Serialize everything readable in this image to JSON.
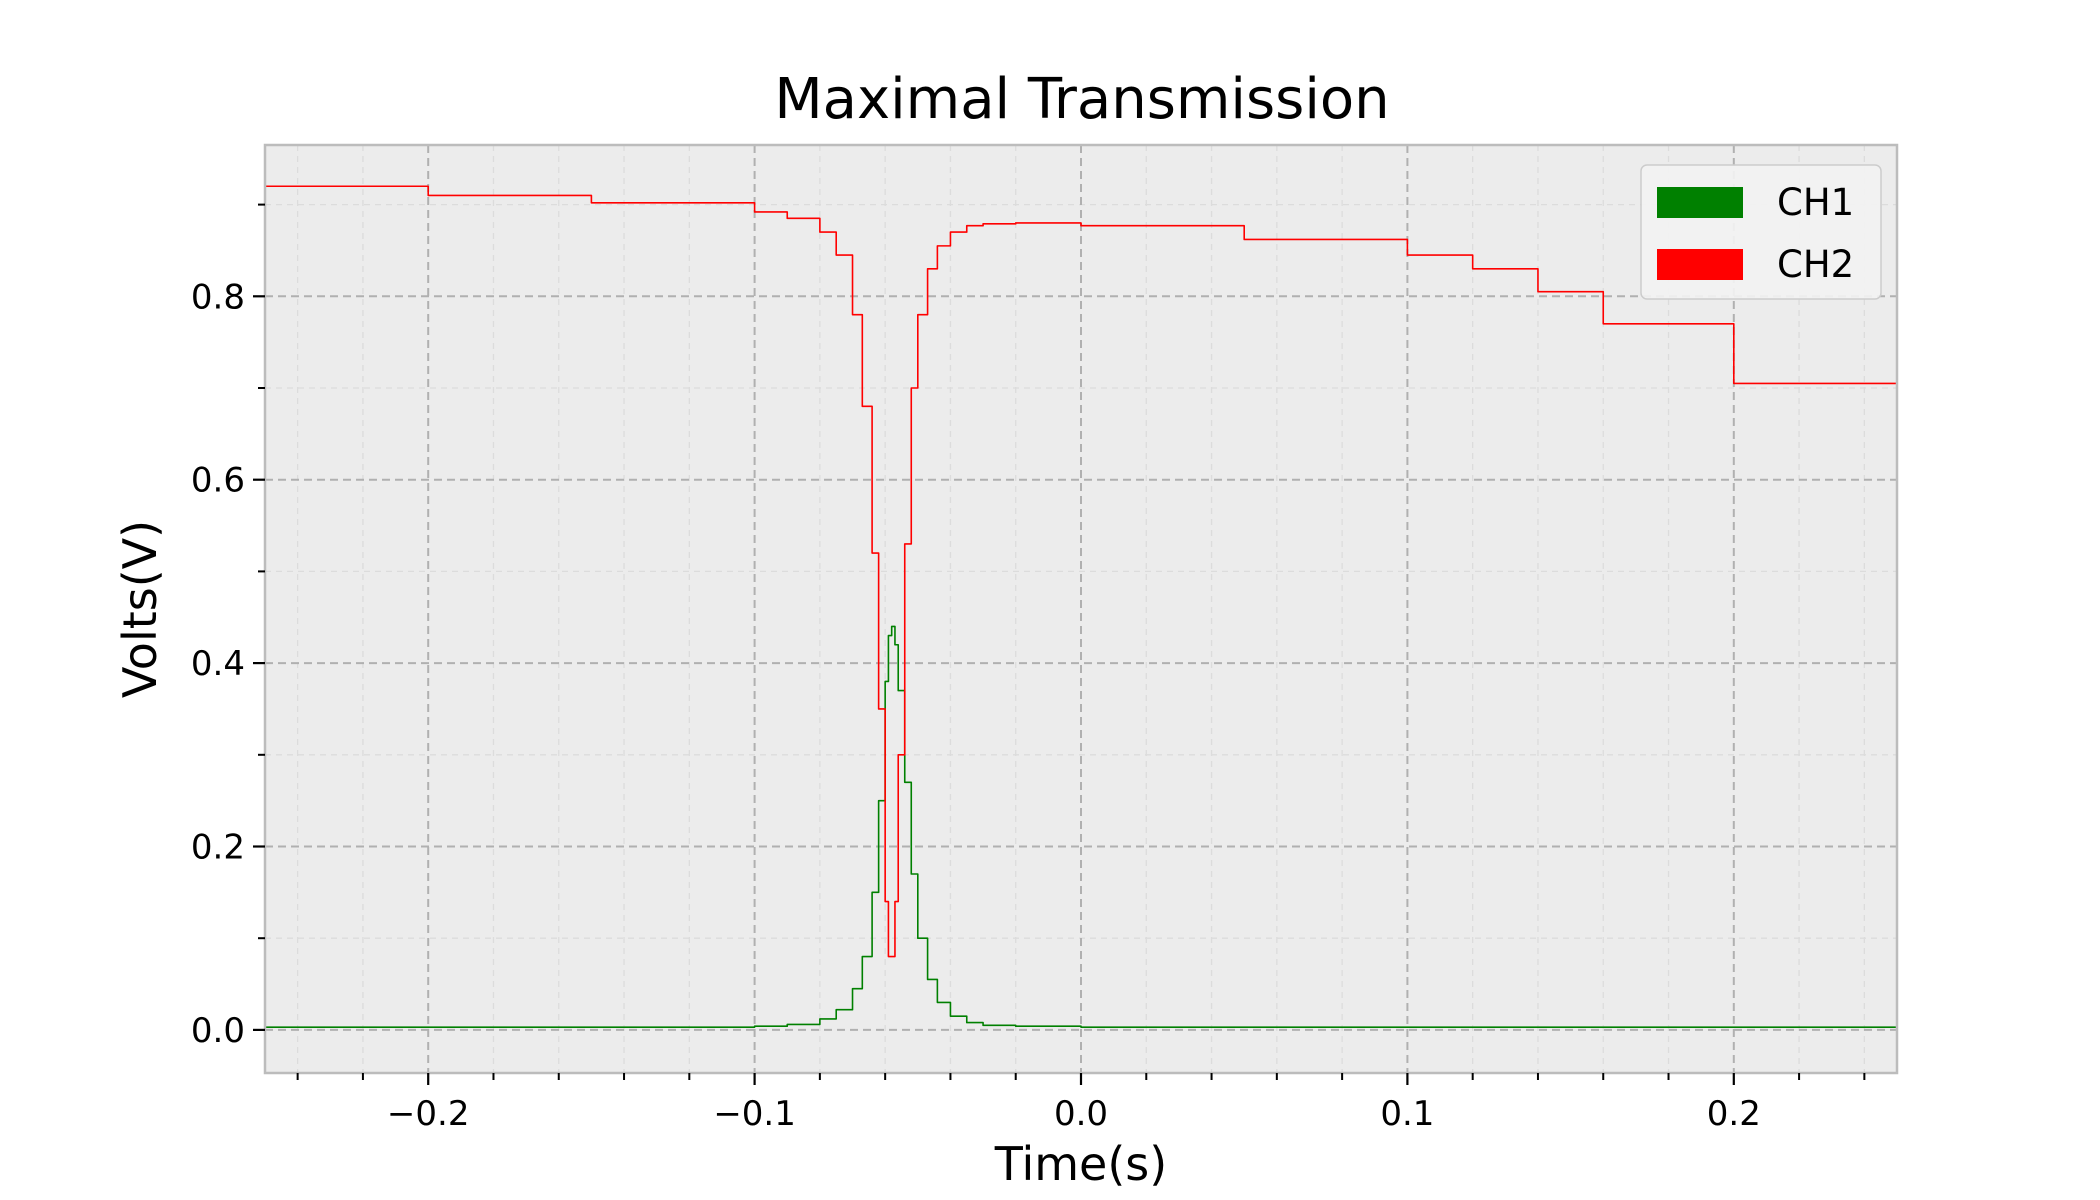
{
  "chart_data": {
    "type": "line",
    "title": "Maximal Transmission",
    "xlabel": "Time(s)",
    "ylabel": "Volts(V)",
    "xlim": [
      -0.25,
      0.25
    ],
    "ylim": [
      -0.047,
      0.965
    ],
    "x_major_ticks": [
      -0.2,
      -0.1,
      0.0,
      0.1,
      0.2
    ],
    "x_tick_labels": [
      "−0.2",
      "−0.1",
      "0.0",
      "0.1",
      "0.2"
    ],
    "x_minor_step": 0.02,
    "y_major_ticks": [
      0.0,
      0.2,
      0.4,
      0.6,
      0.8
    ],
    "y_tick_labels": [
      "0.0",
      "0.2",
      "0.4",
      "0.6",
      "0.8"
    ],
    "y_minor_step": 0.1,
    "grid": true,
    "background_color": "#ececec",
    "legend_position": "top-right",
    "series": [
      {
        "name": "CH1",
        "color": "#008000",
        "x": [
          -0.25,
          -0.2,
          -0.15,
          -0.1,
          -0.09,
          -0.08,
          -0.075,
          -0.07,
          -0.067,
          -0.064,
          -0.062,
          -0.06,
          -0.059,
          -0.058,
          -0.057,
          -0.056,
          -0.054,
          -0.052,
          -0.05,
          -0.047,
          -0.044,
          -0.04,
          -0.035,
          -0.03,
          -0.02,
          0.0,
          0.1,
          0.2,
          0.25
        ],
        "y": [
          0.003,
          0.003,
          0.003,
          0.004,
          0.006,
          0.012,
          0.022,
          0.045,
          0.08,
          0.15,
          0.25,
          0.38,
          0.43,
          0.44,
          0.42,
          0.37,
          0.27,
          0.17,
          0.1,
          0.055,
          0.03,
          0.015,
          0.008,
          0.005,
          0.004,
          0.003,
          0.003,
          0.003,
          0.003
        ]
      },
      {
        "name": "CH2",
        "color": "#ff0000",
        "x": [
          -0.25,
          -0.2,
          -0.15,
          -0.1,
          -0.09,
          -0.08,
          -0.075,
          -0.07,
          -0.067,
          -0.064,
          -0.062,
          -0.06,
          -0.059,
          -0.058,
          -0.057,
          -0.056,
          -0.054,
          -0.052,
          -0.05,
          -0.047,
          -0.044,
          -0.04,
          -0.035,
          -0.03,
          -0.02,
          0.0,
          0.05,
          0.1,
          0.12,
          0.14,
          0.16,
          0.2,
          0.25
        ],
        "y": [
          0.92,
          0.91,
          0.902,
          0.892,
          0.885,
          0.87,
          0.845,
          0.78,
          0.68,
          0.52,
          0.35,
          0.14,
          0.08,
          0.08,
          0.14,
          0.3,
          0.53,
          0.7,
          0.78,
          0.83,
          0.855,
          0.87,
          0.877,
          0.879,
          0.88,
          0.877,
          0.862,
          0.845,
          0.83,
          0.805,
          0.77,
          0.705,
          0.628
        ]
      }
    ]
  }
}
